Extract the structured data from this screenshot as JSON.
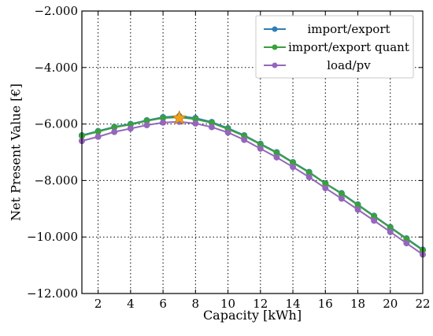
{
  "chart_data": {
    "type": "line",
    "xlabel": "Capacity [kWh]",
    "ylabel": "Net Present Value [€]",
    "xlim": [
      1,
      22
    ],
    "ylim": [
      -12000,
      -2000
    ],
    "x_ticks": [
      2,
      4,
      6,
      8,
      10,
      12,
      14,
      16,
      18,
      20,
      22
    ],
    "y_ticks": [
      -12000,
      -10000,
      -8000,
      -6000,
      -4000,
      -2000
    ],
    "y_tick_labels": [
      "−12.000",
      "−10.000",
      "−8.000",
      "−6.000",
      "−4.000",
      "−2.000"
    ],
    "grid": true,
    "legend_position": "top-right",
    "x": [
      1,
      2,
      3,
      4,
      5,
      6,
      7,
      8,
      9,
      10,
      11,
      12,
      13,
      14,
      15,
      16,
      17,
      18,
      19,
      20,
      21,
      22
    ],
    "series": [
      {
        "name": "import/export",
        "color": "#2e7fb8",
        "values": [
          -6400,
          -6250,
          -6100,
          -6000,
          -5870,
          -5760,
          -5720,
          -5790,
          -5930,
          -6150,
          -6400,
          -6700,
          -7000,
          -7350,
          -7700,
          -8100,
          -8450,
          -8850,
          -9250,
          -9650,
          -10050,
          -10450
        ]
      },
      {
        "name": "import/export quant",
        "color": "#3ba03b",
        "values": [
          -6420,
          -6270,
          -6120,
          -6020,
          -5890,
          -5790,
          -5760,
          -5830,
          -5960,
          -6180,
          -6420,
          -6720,
          -7020,
          -7370,
          -7720,
          -8110,
          -8470,
          -8870,
          -9270,
          -9670,
          -10070,
          -10470
        ]
      },
      {
        "name": "load/pv",
        "color": "#9467bd",
        "values": [
          -6600,
          -6450,
          -6280,
          -6160,
          -6040,
          -5950,
          -5920,
          -5980,
          -6110,
          -6300,
          -6560,
          -6870,
          -7180,
          -7520,
          -7880,
          -8270,
          -8640,
          -9030,
          -9420,
          -9820,
          -10220,
          -10620
        ]
      }
    ],
    "optimum_marker": {
      "x": 7,
      "y": -5790,
      "color": "#f0a020",
      "shape": "star"
    }
  }
}
